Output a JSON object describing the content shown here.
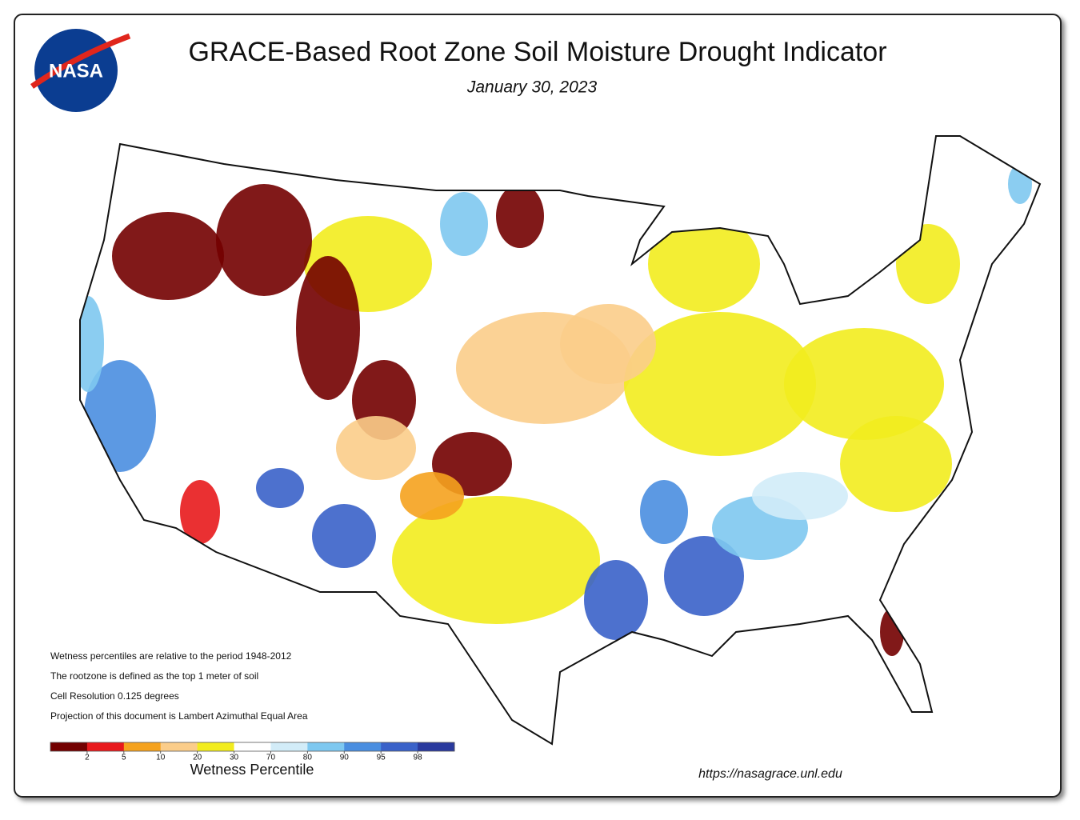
{
  "header": {
    "logo": "NASA",
    "title": "GRACE-Based Root Zone Soil  Moisture Drought Indicator",
    "date": "January 30, 2023"
  },
  "notes": [
    "Wetness percentiles are relative to the period 1948-2012",
    "The rootzone is defined as the top 1 meter of soil",
    "Cell Resolution 0.125 degrees",
    "Projection of this document is Lambert Azimuthal Equal Area"
  ],
  "legend": {
    "title": "Wetness Percentile",
    "ticks": [
      2,
      5,
      10,
      20,
      30,
      70,
      80,
      90,
      95,
      98
    ],
    "colors": [
      "#730000",
      "#e8191c",
      "#f5a21e",
      "#fbcd8a",
      "#f2ec1e",
      "#ffffff",
      "#d2ecf8",
      "#7ec8f0",
      "#4a8ee0",
      "#3a62c9",
      "#2a3a9e"
    ]
  },
  "footer": {
    "url": "https://nasagrace.unl.edu"
  }
}
